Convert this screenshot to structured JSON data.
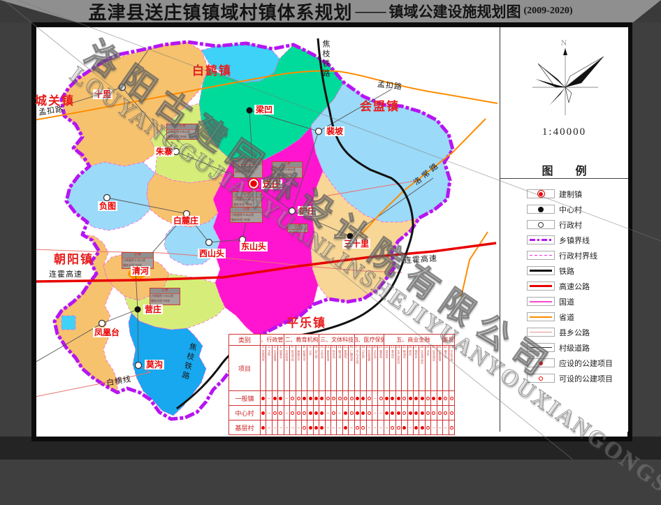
{
  "title": {
    "main": "孟津县送庄镇镇域村镇体系规划",
    "dash": "——",
    "sub": "镇域公建设施规划图",
    "years": "(2009-2020)"
  },
  "watermark": {
    "cn": "洛阳古建园林设计院有限公司",
    "en": "LOUYANGGUJIANYUANLINSHEJIYUANYOUXIANGONGSI"
  },
  "compass": {
    "north": "N",
    "scale": "1:40000"
  },
  "legend": {
    "header": "图  例",
    "items": [
      {
        "name": "built-town",
        "label": "建制镇"
      },
      {
        "name": "center-village",
        "label": "中心村"
      },
      {
        "name": "admin-village",
        "label": "行政村"
      },
      {
        "name": "township-boundary",
        "label": "乡镇界线"
      },
      {
        "name": "admin-village-boundary",
        "label": "行政村界线"
      },
      {
        "name": "railway",
        "label": "铁路"
      },
      {
        "name": "expressway",
        "label": "高速公路"
      },
      {
        "name": "national-road",
        "label": "国道"
      },
      {
        "name": "provincial-road",
        "label": "省道"
      },
      {
        "name": "county-road",
        "label": "县乡公路"
      },
      {
        "name": "village-road",
        "label": "村级道路"
      },
      {
        "name": "required-facility",
        "label": "应设的公建项目"
      },
      {
        "name": "optional-facility",
        "label": "可设的公建项目"
      }
    ]
  },
  "map": {
    "neighbor_towns": [
      {
        "label": "城关镇"
      },
      {
        "label": "白鹤镇"
      },
      {
        "label": "会盟镇"
      },
      {
        "label": "朝阳镇"
      },
      {
        "label": "平乐镇"
      }
    ],
    "villages": [
      {
        "label": "十里",
        "type": "行政村"
      },
      {
        "label": "朱寨",
        "type": "行政村"
      },
      {
        "label": "梁凹",
        "type": "中心村"
      },
      {
        "label": "裴坡",
        "type": "行政村"
      },
      {
        "label": "送庄",
        "type": "建制镇"
      },
      {
        "label": "护庄",
        "type": "行政村"
      },
      {
        "label": "负图",
        "type": "行政村"
      },
      {
        "label": "白麓庄",
        "type": "行政村"
      },
      {
        "label": "西山头",
        "type": "行政村"
      },
      {
        "label": "东山头",
        "type": "行政村"
      },
      {
        "label": "三十里",
        "type": "中心村"
      },
      {
        "label": "清河",
        "type": "行政村"
      },
      {
        "label": "营庄",
        "type": "中心村"
      },
      {
        "label": "凤凰台",
        "type": "行政村"
      },
      {
        "label": "莫沟",
        "type": "行政村"
      }
    ],
    "roads": {
      "mengkou": "孟扣路",
      "luochang": "洛常路",
      "lianhuo": "连霍高速",
      "jiaozhi": "焦枝铁路",
      "baiheng": "白横线"
    },
    "info_box": {
      "header": "小学",
      "rows": [
        "占地面积 0.36公顷",
        "服务半径 700米"
      ]
    }
  },
  "table": {
    "corner": "类别",
    "row_header": "项目",
    "groups": [
      {
        "label": "一、行政管理",
        "span": 4
      },
      {
        "label": "二、教育机构",
        "span": 6
      },
      {
        "label": "三、文体科技",
        "span": 6
      },
      {
        "label": "四、医疗保健",
        "span": 5
      },
      {
        "label": "五、商业金融",
        "span": 10
      },
      {
        "label": "六、集贸设施",
        "span": 2
      }
    ],
    "columns": [
      "党政团体",
      "法庭",
      "专项管理",
      "居委会",
      "专科院校",
      "职业学校",
      "高级中学",
      "初级中学",
      "小学",
      "幼儿园",
      "文化站",
      "体育场馆",
      "科技站",
      "图书馆",
      "影剧院",
      "广播电视",
      "中心卫生院",
      "卫生所",
      "防疫保健",
      "计生站",
      "敬老院",
      "百货店",
      "食品店",
      "生产资料店",
      "粮油店",
      "药店",
      "燃料店",
      "文化用品店",
      "书店",
      "综合商店",
      "饮食旅馆",
      "集市场",
      "专业市场"
    ],
    "rows": [
      {
        "label": "一般镇",
        "cells": "D-DD-OODDDDOOOOODDO-ODDDODDDODDOO"
      },
      {
        "label": "中心村",
        "cells": "D-OO-OOODDD-O-DODDO--DDDODDDOOOOO"
      },
      {
        "label": "基层村",
        "cells": "D------ODDD---D-OO----OOD-DDO---O"
      }
    ],
    "symbol_legend": {
      "D": "应设 ●",
      "O": "可设 ○",
      "-": "不设 –"
    }
  },
  "colors": {
    "township_boundary": "#b614f2",
    "region_magenta": "#ff14cf",
    "region_orange": "#f6c26e",
    "region_tan": "#f7d696",
    "region_yellowgreen": "#d6ee79",
    "region_green": "#00db9b",
    "region_lightblue": "#9bdaf8",
    "region_cyan": "#3fd2f8",
    "region_blue": "#17a8ef",
    "expressway": "#e80000",
    "provincial_road": "#ff8c00",
    "railway": "#111111",
    "table_red": "#cc3333"
  }
}
